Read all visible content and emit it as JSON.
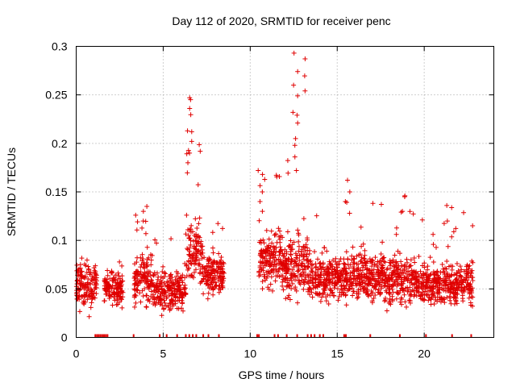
{
  "chart_data": {
    "type": "scatter",
    "title": "Day 112 of 2020, SRMTID for receiver penc",
    "xlabel": "GPS time / hours",
    "ylabel": "SRMTID / TECUs",
    "xlim": [
      0,
      24
    ],
    "ylim": [
      0,
      0.3
    ],
    "xticks": [
      0,
      5,
      10,
      15,
      20
    ],
    "xtick_labels": [
      "0",
      "5",
      "10",
      "15",
      "20"
    ],
    "yticks": [
      0,
      0.05,
      0.1,
      0.15,
      0.2,
      0.25,
      0.3
    ],
    "ytick_labels": [
      "0",
      "0.05",
      "0.1",
      "0.15",
      "0.2",
      "0.25",
      "0.3"
    ],
    "grid": true,
    "marker": "+",
    "color": "#e00000",
    "segments": [
      {
        "start": 0.0,
        "end": 1.2,
        "base": 0.055,
        "spread": 0.035,
        "peak": 0.107
      },
      {
        "start": 1.6,
        "end": 2.7,
        "base": 0.05,
        "spread": 0.025,
        "peak": 0.087
      },
      {
        "start": 3.3,
        "end": 4.4,
        "base": 0.06,
        "spread": 0.035,
        "peak": 0.135
      },
      {
        "start": 4.4,
        "end": 6.3,
        "base": 0.048,
        "spread": 0.03,
        "peak": 0.11
      },
      {
        "start": 6.3,
        "end": 7.2,
        "base": 0.09,
        "spread": 0.04,
        "peak": 0.247
      },
      {
        "start": 7.2,
        "end": 8.5,
        "base": 0.065,
        "spread": 0.03,
        "peak": 0.12
      },
      {
        "start": 10.5,
        "end": 11.8,
        "base": 0.08,
        "spread": 0.04,
        "peak": 0.172
      },
      {
        "start": 11.8,
        "end": 13.3,
        "base": 0.075,
        "spread": 0.045,
        "peak": 0.293
      },
      {
        "start": 13.3,
        "end": 15.5,
        "base": 0.06,
        "spread": 0.035,
        "peak": 0.13
      },
      {
        "start": 15.5,
        "end": 17.0,
        "base": 0.065,
        "spread": 0.035,
        "peak": 0.162
      },
      {
        "start": 17.0,
        "end": 19.5,
        "base": 0.06,
        "spread": 0.035,
        "peak": 0.145
      },
      {
        "start": 19.5,
        "end": 21.0,
        "base": 0.055,
        "spread": 0.03,
        "peak": 0.125
      },
      {
        "start": 21.0,
        "end": 22.8,
        "base": 0.055,
        "spread": 0.03,
        "peak": 0.136
      }
    ],
    "spikes": [
      {
        "x": 6.5,
        "values": [
          0.247,
          0.245,
          0.236,
          0.213,
          0.212,
          0.19,
          0.18
        ]
      },
      {
        "x": 12.6,
        "values": [
          0.293,
          0.274,
          0.26,
          0.249,
          0.232,
          0.229,
          0.221,
          0.205,
          0.198,
          0.186,
          0.172
        ]
      },
      {
        "x": 10.6,
        "values": [
          0.172,
          0.168,
          0.15,
          0.14,
          0.13
        ]
      },
      {
        "x": 15.6,
        "values": [
          0.162,
          0.15,
          0.14,
          0.128
        ]
      },
      {
        "x": 18.8,
        "values": [
          0.146,
          0.145,
          0.13
        ]
      },
      {
        "x": 21.3,
        "values": [
          0.136,
          0.12
        ]
      },
      {
        "x": 4.0,
        "values": [
          0.135,
          0.13,
          0.12
        ]
      }
    ],
    "zero_markers_x": [
      1.1,
      1.2,
      1.3,
      1.4,
      1.5,
      1.6,
      1.7,
      1.8,
      3.3,
      4.8,
      5.2,
      5.8,
      6.3,
      6.5,
      6.7,
      6.9,
      7.3,
      7.6,
      8.2,
      10.4,
      10.5,
      11.4,
      11.6,
      12.1,
      12.7,
      13.3,
      13.5,
      13.7,
      14.0,
      14.2,
      15.4,
      15.5,
      16.9,
      18.6,
      20.1,
      21.6,
      22.7
    ]
  }
}
